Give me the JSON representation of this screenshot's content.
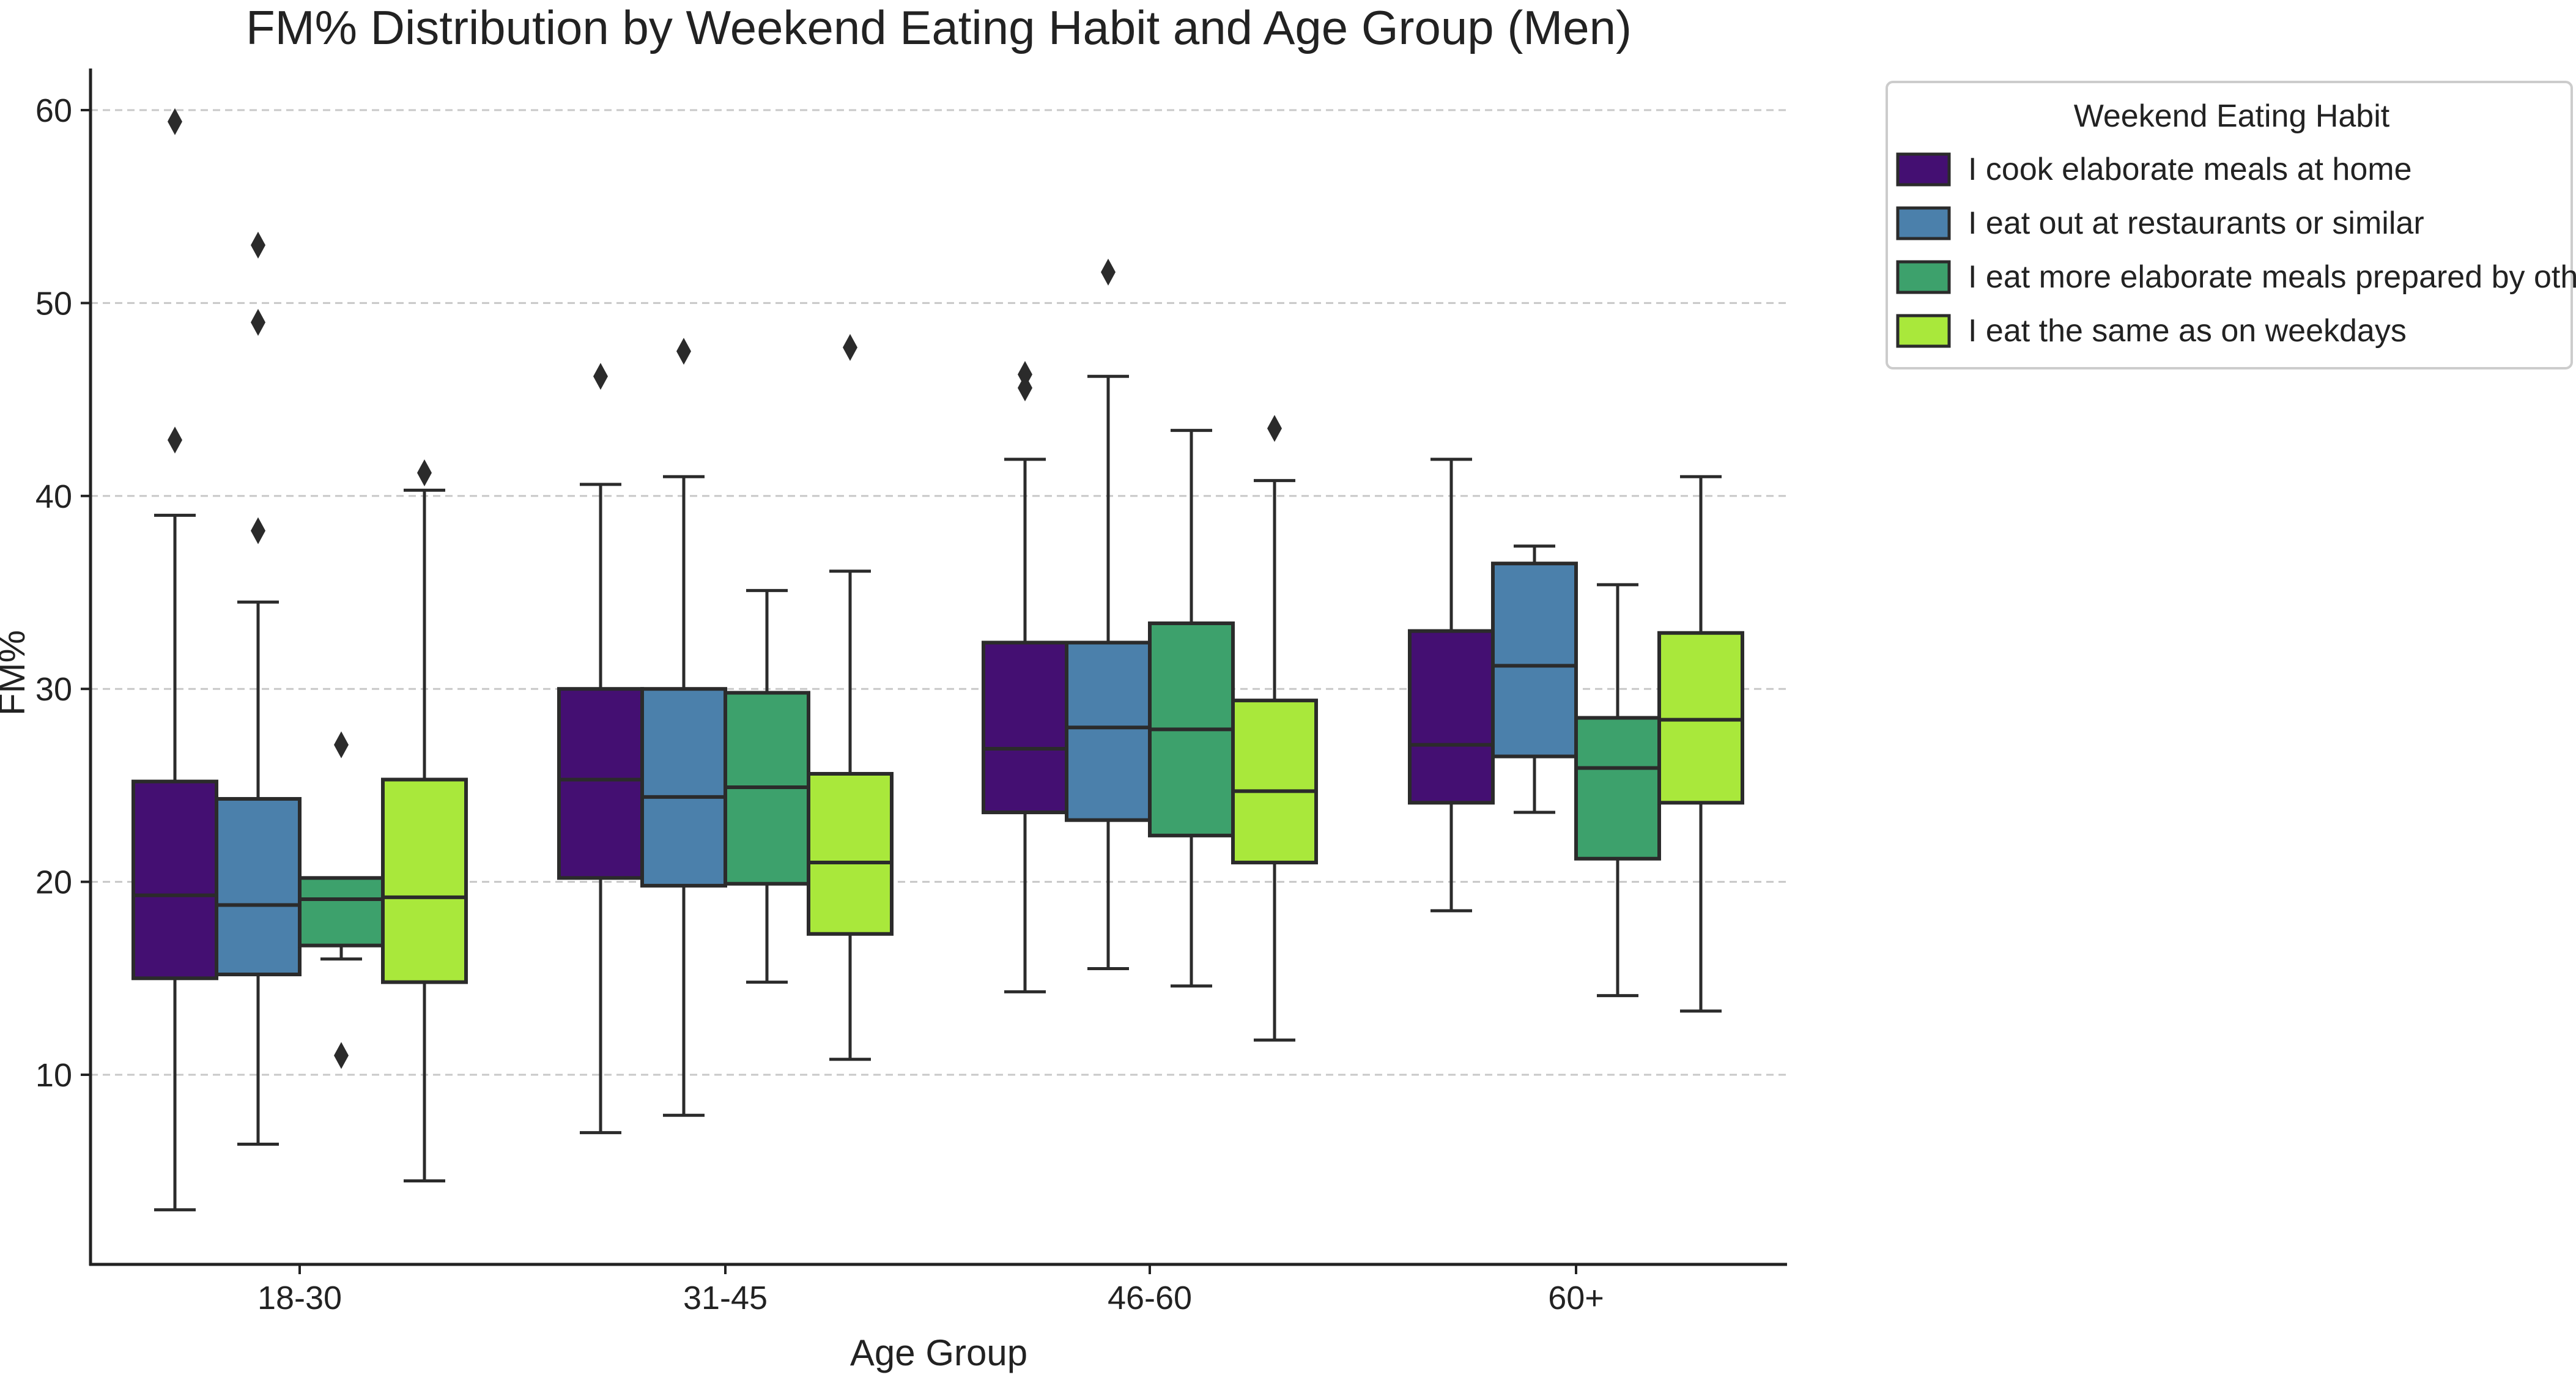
{
  "chart_data": {
    "type": "boxplot",
    "title": "FM% Distribution by Weekend Eating Habit and Age Group (Men)",
    "xlabel": "Age Group",
    "ylabel": "FM%",
    "ylim": [
      0,
      62
    ],
    "yticks": [
      10,
      20,
      30,
      40,
      50,
      60
    ],
    "grid": "horizontal-dashed",
    "legend": {
      "title": "Weekend Eating Habit",
      "placement": "outside-top-right"
    },
    "categories": [
      "18-30",
      "31-45",
      "46-60",
      "60+"
    ],
    "series": [
      {
        "name": "I cook elaborate meals at home",
        "color": "#440f72",
        "boxes": [
          {
            "whislo": 3,
            "q1": 15,
            "med": 19.3,
            "q3": 25.2,
            "whishi": 39,
            "fliers": [
              42.9,
              59.4
            ]
          },
          {
            "whislo": 7,
            "q1": 20.2,
            "med": 25.3,
            "q3": 30,
            "whishi": 40.6,
            "fliers": [
              46.2
            ]
          },
          {
            "whislo": 14.3,
            "q1": 23.6,
            "med": 26.9,
            "q3": 32.4,
            "whishi": 41.9,
            "fliers": [
              45.6,
              46.3
            ]
          },
          {
            "whislo": 18.5,
            "q1": 24.1,
            "med": 27.1,
            "q3": 33,
            "whishi": 41.9,
            "fliers": []
          }
        ]
      },
      {
        "name": "I eat out at restaurants or similar",
        "color": "#4b80ab",
        "boxes": [
          {
            "whislo": 6.4,
            "q1": 15.2,
            "med": 18.8,
            "q3": 24.3,
            "whishi": 34.5,
            "fliers": [
              38.2,
              49,
              53
            ]
          },
          {
            "whislo": 7.9,
            "q1": 19.8,
            "med": 24.4,
            "q3": 30,
            "whishi": 41,
            "fliers": [
              47.5
            ]
          },
          {
            "whislo": 15.5,
            "q1": 23.2,
            "med": 28,
            "q3": 32.4,
            "whishi": 46.2,
            "fliers": [
              51.6
            ]
          },
          {
            "whislo": 23.6,
            "q1": 26.5,
            "med": 31.2,
            "q3": 36.5,
            "whishi": 37.4,
            "fliers": []
          }
        ]
      },
      {
        "name": "I eat more elaborate meals prepared by others",
        "color": "#3da16c",
        "boxes": [
          {
            "whislo": 16,
            "q1": 16.7,
            "med": 19.1,
            "q3": 20.2,
            "whishi": 20.2,
            "fliers": [
              11,
              27.1
            ]
          },
          {
            "whislo": 14.8,
            "q1": 19.9,
            "med": 24.9,
            "q3": 29.8,
            "whishi": 35.1,
            "fliers": []
          },
          {
            "whislo": 14.6,
            "q1": 22.4,
            "med": 27.9,
            "q3": 33.4,
            "whishi": 43.4,
            "fliers": []
          },
          {
            "whislo": 14.1,
            "q1": 21.2,
            "med": 25.9,
            "q3": 28.5,
            "whishi": 35.4,
            "fliers": []
          }
        ]
      },
      {
        "name": "I eat the same as on weekdays",
        "color": "#a9e83b",
        "boxes": [
          {
            "whislo": 4.5,
            "q1": 14.8,
            "med": 19.2,
            "q3": 25.3,
            "whishi": 40.3,
            "fliers": [
              41.2
            ]
          },
          {
            "whislo": 10.8,
            "q1": 17.3,
            "med": 21,
            "q3": 25.6,
            "whishi": 36.1,
            "fliers": [
              47.7
            ]
          },
          {
            "whislo": 11.8,
            "q1": 21,
            "med": 24.7,
            "q3": 29.4,
            "whishi": 40.8,
            "fliers": [
              43.5
            ]
          },
          {
            "whislo": 13.3,
            "q1": 24.1,
            "med": 28.4,
            "q3": 32.9,
            "whishi": 41,
            "fliers": []
          }
        ]
      }
    ]
  }
}
